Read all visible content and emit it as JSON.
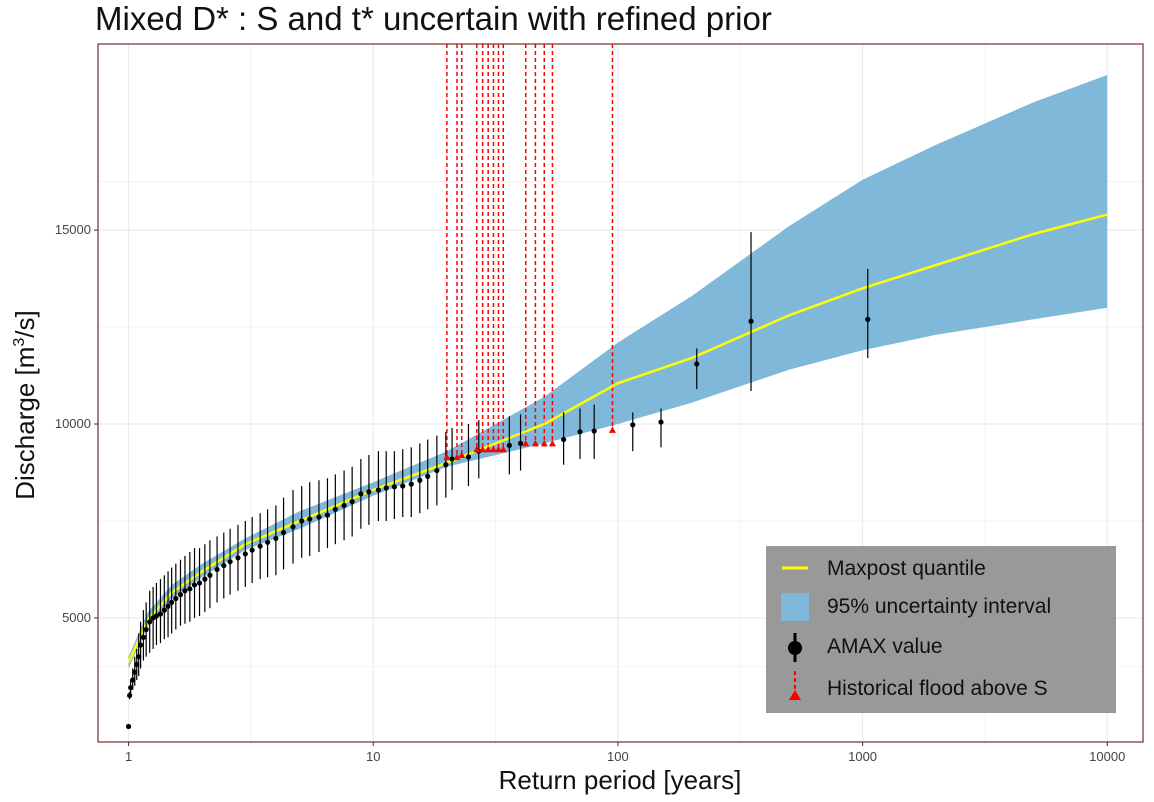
{
  "chart_data": {
    "type": "scatter",
    "title": "Mixed D* : S and t* uncertain with refined prior",
    "xlabel": "Return period [years]",
    "ylabel_main": "Discharge [m",
    "ylabel_sup": "3",
    "ylabel_end": "/s]",
    "x_scale": "log",
    "xlim": [
      0.75,
      14000
    ],
    "ylim": [
      1800,
      19800
    ],
    "x_ticks": [
      1,
      10,
      100,
      1000,
      10000
    ],
    "x_tick_labels": [
      "1",
      "10",
      "100",
      "1000",
      "10000"
    ],
    "y_ticks": [
      5000,
      10000,
      15000
    ],
    "y_tick_labels": [
      "5000",
      "10000",
      "15000"
    ],
    "grid": true,
    "legend_position": "bottom-right",
    "colors": {
      "maxpost": "#ffff00",
      "band": "#7fb8d8",
      "amax": "#000000",
      "historical": "#ff0000",
      "legend_bg": "#999999",
      "panel_border": "#7a2a2a",
      "grid": "#ebebeb"
    },
    "series": [
      {
        "name": "Maxpost quantile",
        "kind": "line",
        "x": [
          1.0,
          1.2,
          1.5,
          2,
          3,
          5,
          10,
          20,
          50,
          100,
          200,
          500,
          1000,
          2000,
          5000,
          10000
        ],
        "y": [
          3850,
          4950,
          5650,
          6200,
          6900,
          7500,
          8300,
          9000,
          10000,
          11050,
          11700,
          12800,
          13500,
          14100,
          14900,
          15400
        ]
      },
      {
        "name": "95% uncertainty interval",
        "kind": "band",
        "x": [
          1.0,
          1.2,
          1.5,
          2,
          3,
          5,
          10,
          20,
          50,
          100,
          200,
          500,
          1000,
          2000,
          5000,
          10000
        ],
        "lower": [
          3700,
          4800,
          5500,
          6050,
          6750,
          7300,
          8150,
          8900,
          9500,
          10000,
          10550,
          11400,
          11900,
          12300,
          12700,
          13000
        ],
        "upper": [
          4000,
          5150,
          5850,
          6400,
          7050,
          7750,
          8500,
          9300,
          10700,
          12100,
          13300,
          15100,
          16300,
          17200,
          18300,
          19000
        ]
      },
      {
        "name": "AMAX value",
        "kind": "points_with_errorbars",
        "x": [
          1.0,
          1.01,
          1.02,
          1.04,
          1.06,
          1.08,
          1.1,
          1.12,
          1.15,
          1.18,
          1.22,
          1.26,
          1.3,
          1.35,
          1.4,
          1.45,
          1.5,
          1.56,
          1.63,
          1.7,
          1.78,
          1.86,
          1.95,
          2.05,
          2.15,
          2.3,
          2.45,
          2.6,
          2.8,
          3.0,
          3.2,
          3.45,
          3.7,
          4.0,
          4.3,
          4.7,
          5.1,
          5.5,
          6.0,
          6.5,
          7.0,
          7.6,
          8.2,
          8.9,
          9.6,
          10.5,
          11.3,
          12.2,
          13.2,
          14.3,
          15.5,
          16.7,
          18.2,
          19.8,
          21.0,
          24.5,
          27.0,
          36.0,
          40.0,
          60.0,
          70.0,
          80.0,
          115.0,
          150.0,
          210.0,
          350.0,
          1050.0
        ],
        "y": [
          2200,
          3000,
          3200,
          3400,
          3600,
          3800,
          4000,
          4300,
          4500,
          4700,
          4900,
          5000,
          5050,
          5100,
          5200,
          5300,
          5400,
          5500,
          5600,
          5700,
          5750,
          5850,
          5900,
          6000,
          6100,
          6250,
          6350,
          6450,
          6550,
          6650,
          6750,
          6850,
          6950,
          7050,
          7200,
          7350,
          7500,
          7550,
          7600,
          7650,
          7800,
          7900,
          8000,
          8200,
          8250,
          8300,
          8350,
          8380,
          8400,
          8450,
          8550,
          8650,
          8800,
          8950,
          9100,
          9150,
          9300,
          9450,
          9500,
          9600,
          9800,
          9820,
          9980,
          10050,
          11550,
          12650,
          12700
        ],
        "err_low": [
          2150,
          2900,
          3050,
          3150,
          3250,
          3400,
          3500,
          3700,
          3900,
          4000,
          4100,
          4200,
          4300,
          4350,
          4450,
          4500,
          4600,
          4700,
          4800,
          4850,
          4900,
          5000,
          5050,
          5150,
          5250,
          5400,
          5500,
          5600,
          5700,
          5800,
          5900,
          6000,
          6050,
          6100,
          6250,
          6400,
          6550,
          6600,
          6700,
          6800,
          6900,
          7000,
          7100,
          7300,
          7400,
          7500,
          7500,
          7550,
          7600,
          7600,
          7700,
          7800,
          7900,
          8100,
          8300,
          8400,
          8600,
          8700,
          8800,
          8950,
          9100,
          9100,
          9300,
          9400,
          10900,
          10850,
          11700
        ],
        "err_high": [
          2250,
          3100,
          3400,
          3700,
          4000,
          4200,
          4600,
          4900,
          5200,
          5400,
          5700,
          5800,
          5900,
          6000,
          6100,
          6200,
          6300,
          6400,
          6500,
          6600,
          6700,
          6800,
          6800,
          6900,
          7000,
          7100,
          7200,
          7300,
          7400,
          7500,
          7600,
          7700,
          7800,
          7900,
          8100,
          8300,
          8400,
          8500,
          8550,
          8600,
          8700,
          8800,
          8900,
          9100,
          9200,
          9300,
          9300,
          9300,
          9350,
          9400,
          9500,
          9600,
          9700,
          9800,
          9900,
          10000,
          10100,
          10200,
          10250,
          10300,
          10400,
          10500,
          10300,
          10400,
          11950,
          14950,
          14000
        ]
      },
      {
        "name": "Historical flood above S",
        "kind": "threshold_markers",
        "x": [
          20,
          22,
          23,
          26.5,
          28,
          29.5,
          31,
          32.5,
          34,
          42,
          46,
          50,
          54,
          95
        ],
        "y": [
          9150,
          9150,
          9200,
          9350,
          9350,
          9350,
          9350,
          9350,
          9350,
          9500,
          9500,
          9500,
          9500,
          9850
        ],
        "line_top": 19800
      }
    ]
  }
}
